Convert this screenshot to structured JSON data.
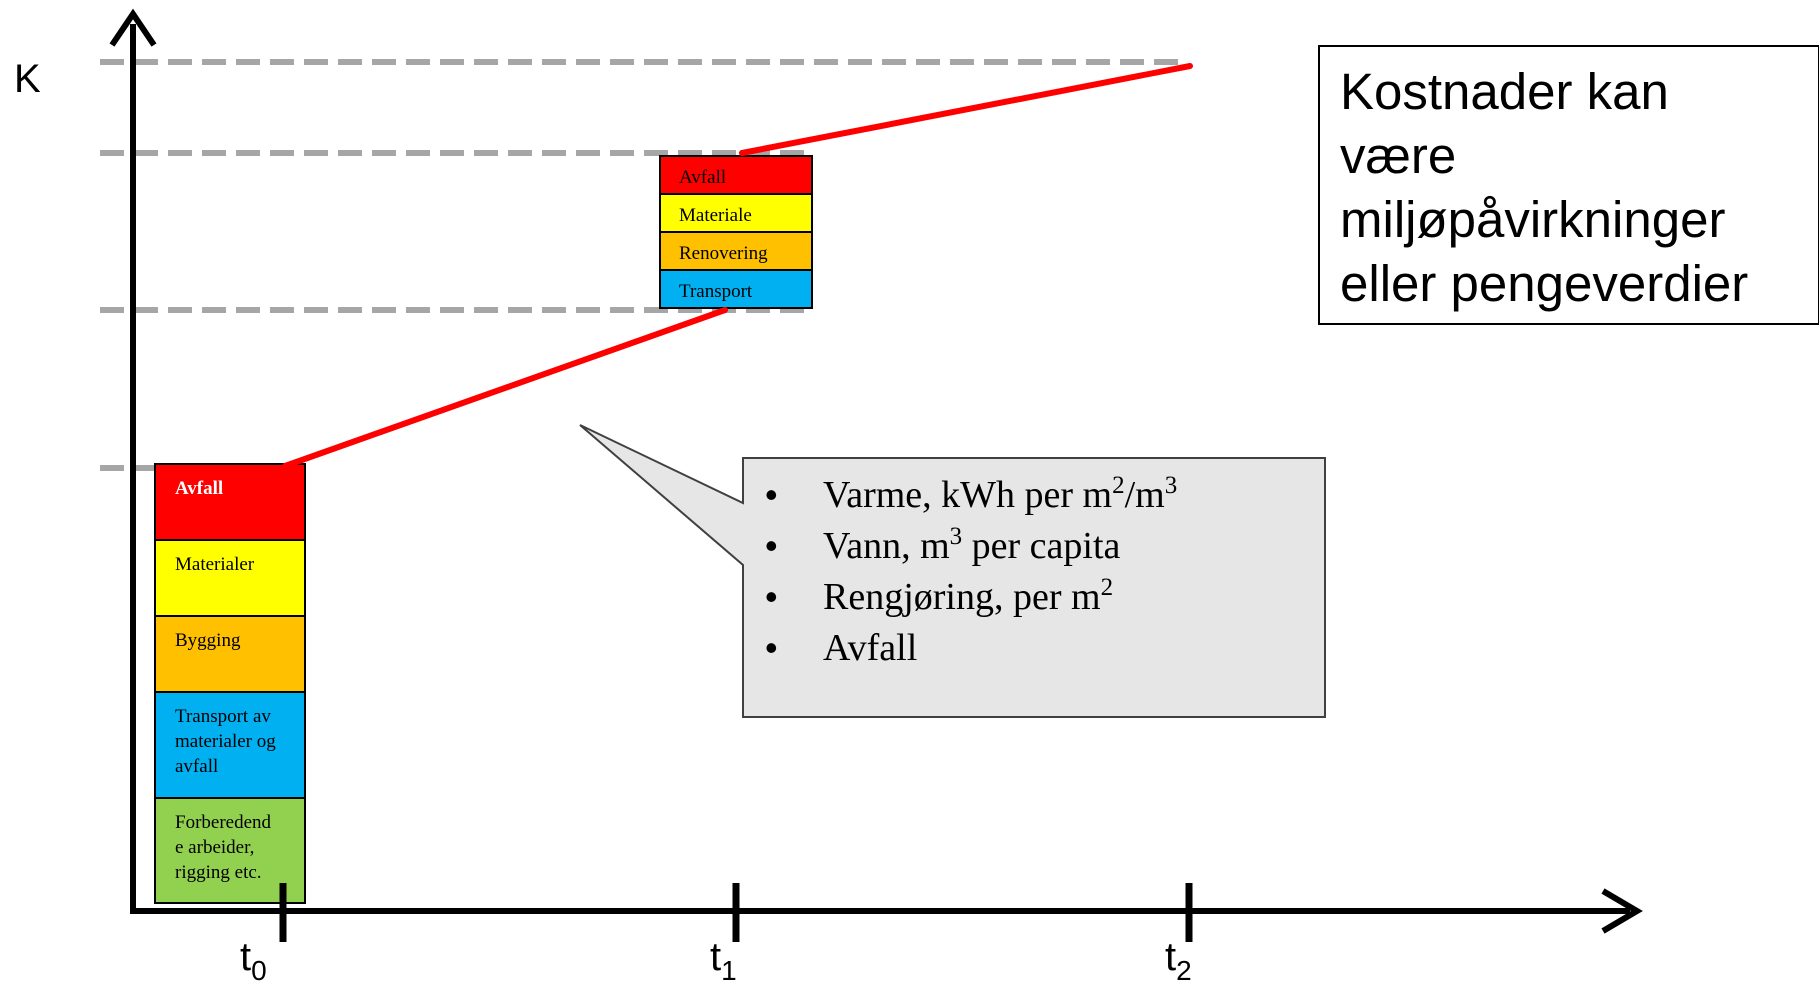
{
  "axes": {
    "y_label": "K",
    "x_ticks": [
      {
        "base": "t",
        "sub": "0"
      },
      {
        "base": "t",
        "sub": "1"
      },
      {
        "base": "t",
        "sub": "2"
      }
    ]
  },
  "stack_t0": {
    "segments": [
      {
        "label_lines": [
          "Avfall"
        ],
        "color": "#ff0000",
        "bold": true,
        "text_color": "#ffffff"
      },
      {
        "label_lines": [
          "Materialer"
        ],
        "color": "#ffff00"
      },
      {
        "label_lines": [
          "Bygging"
        ],
        "color": "#ffc000"
      },
      {
        "label_lines": [
          "Transport av",
          "materialer og",
          "avfall"
        ],
        "color": "#00b0f0"
      },
      {
        "label_lines": [
          "Forberedend",
          "e arbeider,",
          "rigging etc."
        ],
        "color": "#92d050"
      }
    ]
  },
  "stack_t1": {
    "segments": [
      {
        "label_lines": [
          "Avfall"
        ],
        "color": "#ff0000"
      },
      {
        "label_lines": [
          "Materiale"
        ],
        "color": "#ffff00"
      },
      {
        "label_lines": [
          "Renovering"
        ],
        "color": "#ffc000"
      },
      {
        "label_lines": [
          "Transport"
        ],
        "color": "#00b0f0"
      }
    ]
  },
  "callout": {
    "bullet": "•",
    "items": [
      {
        "text": "Varme, kWh per m",
        "sup1": "2",
        "mid": "/m",
        "sup2": "3",
        "tail": ""
      },
      {
        "text": "Vann, m",
        "sup1": "3",
        "mid": " per capita",
        "sup2": "",
        "tail": ""
      },
      {
        "text": "Rengjøring, per m",
        "sup1": "2",
        "mid": "",
        "sup2": "",
        "tail": ""
      },
      {
        "text": "Avfall",
        "sup1": "",
        "mid": "",
        "sup2": "",
        "tail": ""
      }
    ]
  },
  "note": {
    "lines": [
      "Kostnader kan",
      "være",
      "miljøpåvirkninger",
      "eller pengeverdier"
    ]
  },
  "colors": {
    "cost_line": "#ff0000",
    "dashed_guides": "#a6a6a6",
    "axis": "#000000",
    "callout_fill": "#e7e6e6"
  }
}
